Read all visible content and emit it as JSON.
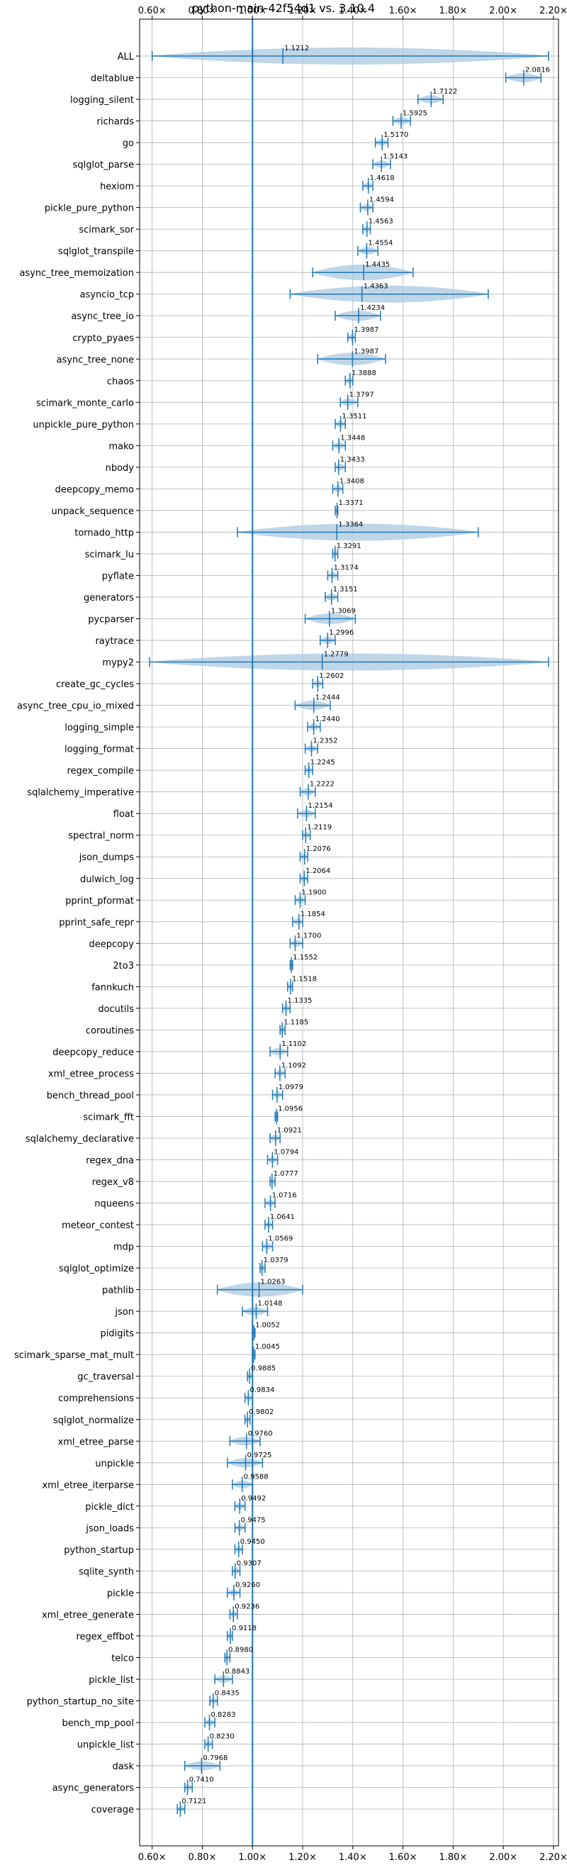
{
  "chart_data": {
    "type": "violin",
    "title": "python-main-42f54d1 vs. 3.10.4",
    "xlim": [
      0.55,
      2.22
    ],
    "x_ticks": [
      0.6,
      0.8,
      1.0,
      1.2,
      1.4,
      1.6,
      1.8,
      2.0,
      2.2
    ],
    "x_tick_labels": [
      "0.60×",
      "0.80×",
      "1.00×",
      "1.20×",
      "1.40×",
      "1.60×",
      "1.80×",
      "2.00×",
      "2.20×"
    ],
    "reference_line": 1.0,
    "grid": true,
    "color": "#1f77b4",
    "fill_color": "#a9c8e2",
    "benchmarks": [
      {
        "name": "ALL",
        "median": 1.1212,
        "label": "1.1212",
        "min": 0.6,
        "max": 2.18
      },
      {
        "name": "deltablue",
        "median": 2.0816,
        "label": "2.0816",
        "min": 2.01,
        "max": 2.15
      },
      {
        "name": "logging_silent",
        "median": 1.7122,
        "label": "1.7122",
        "min": 1.66,
        "max": 1.76
      },
      {
        "name": "richards",
        "median": 1.5925,
        "label": "1.5925",
        "min": 1.56,
        "max": 1.63
      },
      {
        "name": "go",
        "median": 1.517,
        "label": "1.5170",
        "min": 1.49,
        "max": 1.54
      },
      {
        "name": "sqlglot_parse",
        "median": 1.5143,
        "label": "1.5143",
        "min": 1.48,
        "max": 1.55
      },
      {
        "name": "hexiom",
        "median": 1.4618,
        "label": "1.4618",
        "min": 1.44,
        "max": 1.48
      },
      {
        "name": "pickle_pure_python",
        "median": 1.4594,
        "label": "1.4594",
        "min": 1.43,
        "max": 1.48
      },
      {
        "name": "scimark_sor",
        "median": 1.4563,
        "label": "1.4563",
        "min": 1.44,
        "max": 1.47
      },
      {
        "name": "sqlglot_transpile",
        "median": 1.4554,
        "label": "1.4554",
        "min": 1.42,
        "max": 1.5
      },
      {
        "name": "async_tree_memoization",
        "median": 1.4435,
        "label": "1.4435",
        "min": 1.24,
        "max": 1.64
      },
      {
        "name": "asyncio_tcp",
        "median": 1.4363,
        "label": "1.4363",
        "min": 1.15,
        "max": 1.94
      },
      {
        "name": "async_tree_io",
        "median": 1.4234,
        "label": "1.4234",
        "min": 1.33,
        "max": 1.51
      },
      {
        "name": "crypto_pyaes",
        "median": 1.3987,
        "label": "1.3987",
        "min": 1.38,
        "max": 1.41
      },
      {
        "name": "async_tree_none",
        "median": 1.3987,
        "label": "1.3987",
        "min": 1.26,
        "max": 1.53
      },
      {
        "name": "chaos",
        "median": 1.3888,
        "label": "1.3888",
        "min": 1.37,
        "max": 1.4
      },
      {
        "name": "scimark_monte_carlo",
        "median": 1.3797,
        "label": "1.3797",
        "min": 1.35,
        "max": 1.42
      },
      {
        "name": "unpickle_pure_python",
        "median": 1.3511,
        "label": "1.3511",
        "min": 1.33,
        "max": 1.37
      },
      {
        "name": "mako",
        "median": 1.3448,
        "label": "1.3448",
        "min": 1.32,
        "max": 1.37
      },
      {
        "name": "nbody",
        "median": 1.3433,
        "label": "1.3433",
        "min": 1.33,
        "max": 1.37
      },
      {
        "name": "deepcopy_memo",
        "median": 1.3408,
        "label": "1.3408",
        "min": 1.32,
        "max": 1.36
      },
      {
        "name": "unpack_sequence",
        "median": 1.3371,
        "label": "1.3371",
        "min": 1.33,
        "max": 1.34
      },
      {
        "name": "tornado_http",
        "median": 1.3364,
        "label": "1.3364",
        "min": 0.94,
        "max": 1.9
      },
      {
        "name": "scimark_lu",
        "median": 1.3291,
        "label": "1.3291",
        "min": 1.32,
        "max": 1.34
      },
      {
        "name": "pyflate",
        "median": 1.3174,
        "label": "1.3174",
        "min": 1.3,
        "max": 1.34
      },
      {
        "name": "generators",
        "median": 1.3151,
        "label": "1.3151",
        "min": 1.29,
        "max": 1.34
      },
      {
        "name": "pycparser",
        "median": 1.3069,
        "label": "1.3069",
        "min": 1.21,
        "max": 1.41
      },
      {
        "name": "raytrace",
        "median": 1.2996,
        "label": "1.2996",
        "min": 1.27,
        "max": 1.33
      },
      {
        "name": "mypy2",
        "median": 1.2779,
        "label": "1.2779",
        "min": 0.59,
        "max": 2.18
      },
      {
        "name": "create_gc_cycles",
        "median": 1.2602,
        "label": "1.2602",
        "min": 1.24,
        "max": 1.28
      },
      {
        "name": "async_tree_cpu_io_mixed",
        "median": 1.2444,
        "label": "1.2444",
        "min": 1.17,
        "max": 1.31
      },
      {
        "name": "logging_simple",
        "median": 1.244,
        "label": "1.2440",
        "min": 1.22,
        "max": 1.27
      },
      {
        "name": "logging_format",
        "median": 1.2352,
        "label": "1.2352",
        "min": 1.21,
        "max": 1.26
      },
      {
        "name": "regex_compile",
        "median": 1.2245,
        "label": "1.2245",
        "min": 1.21,
        "max": 1.24
      },
      {
        "name": "sqlalchemy_imperative",
        "median": 1.2222,
        "label": "1.2222",
        "min": 1.19,
        "max": 1.25
      },
      {
        "name": "float",
        "median": 1.2154,
        "label": "1.2154",
        "min": 1.18,
        "max": 1.25
      },
      {
        "name": "spectral_norm",
        "median": 1.2119,
        "label": "1.2119",
        "min": 1.2,
        "max": 1.23
      },
      {
        "name": "json_dumps",
        "median": 1.2076,
        "label": "1.2076",
        "min": 1.19,
        "max": 1.22
      },
      {
        "name": "dulwich_log",
        "median": 1.2064,
        "label": "1.2064",
        "min": 1.19,
        "max": 1.22
      },
      {
        "name": "pprint_pformat",
        "median": 1.19,
        "label": "1.1900",
        "min": 1.17,
        "max": 1.21
      },
      {
        "name": "pprint_safe_repr",
        "median": 1.1854,
        "label": "1.1854",
        "min": 1.16,
        "max": 1.2
      },
      {
        "name": "deepcopy",
        "median": 1.17,
        "label": "1.1700",
        "min": 1.15,
        "max": 1.2
      },
      {
        "name": "2to3",
        "median": 1.1552,
        "label": "1.1552",
        "min": 1.15,
        "max": 1.16
      },
      {
        "name": "fannkuch",
        "median": 1.1518,
        "label": "1.1518",
        "min": 1.14,
        "max": 1.16
      },
      {
        "name": "docutils",
        "median": 1.1335,
        "label": "1.1335",
        "min": 1.12,
        "max": 1.15
      },
      {
        "name": "coroutines",
        "median": 1.1185,
        "label": "1.1185",
        "min": 1.11,
        "max": 1.13
      },
      {
        "name": "deepcopy_reduce",
        "median": 1.1102,
        "label": "1.1102",
        "min": 1.07,
        "max": 1.14
      },
      {
        "name": "xml_etree_process",
        "median": 1.1092,
        "label": "1.1092",
        "min": 1.09,
        "max": 1.13
      },
      {
        "name": "bench_thread_pool",
        "median": 1.0979,
        "label": "1.0979",
        "min": 1.08,
        "max": 1.12
      },
      {
        "name": "scimark_fft",
        "median": 1.0956,
        "label": "1.0956",
        "min": 1.09,
        "max": 1.1
      },
      {
        "name": "sqlalchemy_declarative",
        "median": 1.0921,
        "label": "1.0921",
        "min": 1.07,
        "max": 1.11
      },
      {
        "name": "regex_dna",
        "median": 1.0794,
        "label": "1.0794",
        "min": 1.06,
        "max": 1.1
      },
      {
        "name": "regex_v8",
        "median": 1.0777,
        "label": "1.0777",
        "min": 1.07,
        "max": 1.09
      },
      {
        "name": "nqueens",
        "median": 1.0716,
        "label": "1.0716",
        "min": 1.05,
        "max": 1.09
      },
      {
        "name": "meteor_contest",
        "median": 1.0641,
        "label": "1.0641",
        "min": 1.05,
        "max": 1.08
      },
      {
        "name": "mdp",
        "median": 1.0569,
        "label": "1.0569",
        "min": 1.04,
        "max": 1.08
      },
      {
        "name": "sqlglot_optimize",
        "median": 1.0379,
        "label": "1.0379",
        "min": 1.03,
        "max": 1.05
      },
      {
        "name": "pathlib",
        "median": 1.0263,
        "label": "1.0263",
        "min": 0.86,
        "max": 1.2
      },
      {
        "name": "json",
        "median": 1.0148,
        "label": "1.0148",
        "min": 0.96,
        "max": 1.06
      },
      {
        "name": "pidigits",
        "median": 1.0052,
        "label": "1.0052",
        "min": 1.0,
        "max": 1.01
      },
      {
        "name": "scimark_sparse_mat_mult",
        "median": 1.0045,
        "label": "1.0045",
        "min": 1.0,
        "max": 1.01
      },
      {
        "name": "gc_traversal",
        "median": 0.9885,
        "label": "0.9885",
        "min": 0.98,
        "max": 1.0
      },
      {
        "name": "comprehensions",
        "median": 0.9834,
        "label": "0.9834",
        "min": 0.97,
        "max": 1.0
      },
      {
        "name": "sqlglot_normalize",
        "median": 0.9802,
        "label": "0.9802",
        "min": 0.97,
        "max": 0.99
      },
      {
        "name": "xml_etree_parse",
        "median": 0.976,
        "label": "0.9760",
        "min": 0.91,
        "max": 1.03
      },
      {
        "name": "unpickle",
        "median": 0.9725,
        "label": "0.9725",
        "min": 0.9,
        "max": 1.04
      },
      {
        "name": "xml_etree_iterparse",
        "median": 0.9588,
        "label": "0.9588",
        "min": 0.92,
        "max": 1.0
      },
      {
        "name": "pickle_dict",
        "median": 0.9492,
        "label": "0.9492",
        "min": 0.93,
        "max": 0.97
      },
      {
        "name": "json_loads",
        "median": 0.9475,
        "label": "0.9475",
        "min": 0.93,
        "max": 0.97
      },
      {
        "name": "python_startup",
        "median": 0.945,
        "label": "0.9450",
        "min": 0.93,
        "max": 0.96
      },
      {
        "name": "sqlite_synth",
        "median": 0.9307,
        "label": "0.9307",
        "min": 0.92,
        "max": 0.95
      },
      {
        "name": "pickle",
        "median": 0.926,
        "label": "0.9260",
        "min": 0.9,
        "max": 0.95
      },
      {
        "name": "xml_etree_generate",
        "median": 0.9236,
        "label": "0.9236",
        "min": 0.91,
        "max": 0.94
      },
      {
        "name": "regex_effbot",
        "median": 0.9118,
        "label": "0.9118",
        "min": 0.9,
        "max": 0.92
      },
      {
        "name": "telco",
        "median": 0.898,
        "label": "0.8980",
        "min": 0.89,
        "max": 0.91
      },
      {
        "name": "pickle_list",
        "median": 0.8843,
        "label": "0.8843",
        "min": 0.85,
        "max": 0.92
      },
      {
        "name": "python_startup_no_site",
        "median": 0.8435,
        "label": "0.8435",
        "min": 0.83,
        "max": 0.86
      },
      {
        "name": "bench_mp_pool",
        "median": 0.8283,
        "label": "0.8283",
        "min": 0.81,
        "max": 0.85
      },
      {
        "name": "unpickle_list",
        "median": 0.823,
        "label": "0.8230",
        "min": 0.81,
        "max": 0.84
      },
      {
        "name": "dask",
        "median": 0.7968,
        "label": "0.7968",
        "min": 0.73,
        "max": 0.87
      },
      {
        "name": "async_generators",
        "median": 0.741,
        "label": "0.7410",
        "min": 0.73,
        "max": 0.76
      },
      {
        "name": "coverage",
        "median": 0.7121,
        "label": "0.7121",
        "min": 0.7,
        "max": 0.73
      }
    ]
  }
}
